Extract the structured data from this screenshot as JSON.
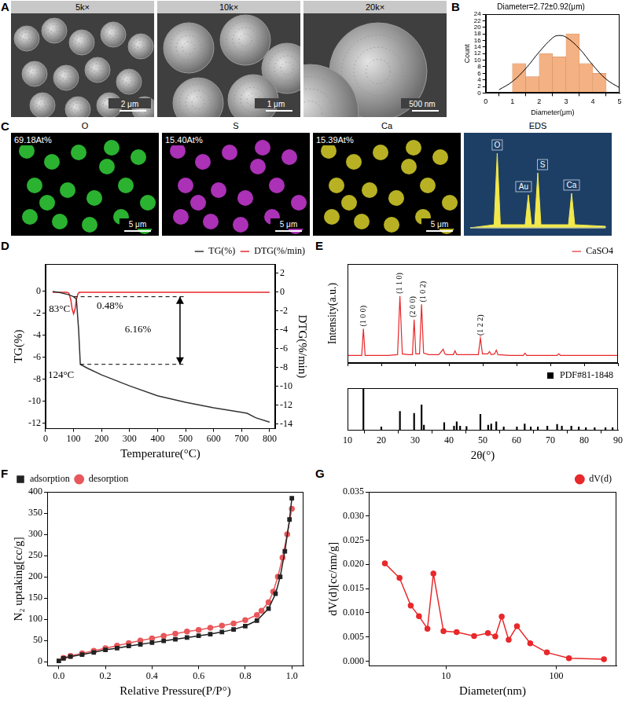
{
  "panels": {
    "A": {
      "panel": "A",
      "images": [
        {
          "label": "5k×",
          "scale_bar": "2 μm"
        },
        {
          "label": "10k×",
          "scale_bar": "1 μm"
        },
        {
          "label": "20k×",
          "scale_bar": "500 nm"
        }
      ]
    },
    "C": {
      "panel": "C",
      "maps": [
        {
          "element": "O",
          "content": "69.18At%",
          "color": "#33d13a",
          "scale_bar": "5 μm"
        },
        {
          "element": "S",
          "content": "15.40At%",
          "color": "#c93ad6",
          "scale_bar": "5 μm"
        },
        {
          "element": "Ca",
          "content": "15.39At%",
          "color": "#d8d02a",
          "scale_bar": "5 μm"
        }
      ],
      "spectrum": {
        "title": "EDS",
        "peaks": [
          "O",
          "Au",
          "S",
          "Ca"
        ],
        "color": "#f2e84a"
      }
    }
  },
  "chart_data": [
    {
      "panel": "B",
      "type": "histogram",
      "title": "Diameter=2.72±0.92(μm)",
      "x_label": "Diameter(μm)",
      "y_label": "Count",
      "bins": [
        1,
        1.5,
        2,
        2.5,
        3,
        3.5,
        4,
        4.5
      ],
      "values": [
        9,
        5,
        12,
        11,
        18,
        9,
        6
      ],
      "color": "#f4b183",
      "curve": {
        "x": [
          0.5,
          1,
          1.5,
          2,
          2.5,
          2.72,
          3,
          3.5,
          4,
          4.5,
          5
        ],
        "values": [
          1,
          3.5,
          7.5,
          12.5,
          16.8,
          17.5,
          17,
          13.5,
          8.5,
          4.2,
          1.6
        ],
        "color": "#000000"
      },
      "xlim": [
        0,
        5
      ],
      "xticks": [
        0,
        1,
        2,
        3,
        4,
        5
      ],
      "ylim": [
        0,
        24
      ],
      "yticks": [
        0,
        2,
        4,
        6,
        8,
        10,
        12,
        14,
        16,
        18,
        20,
        22,
        24
      ],
      "grid": false
    },
    {
      "panel": "D",
      "type": "line",
      "x_label": "Temperature(°C)",
      "y_label": "TG(%)",
      "y2_label": "DTG(%/min)",
      "series": [
        {
          "name": "TG(%)",
          "color": "#333333",
          "x": [
            25,
            50,
            83,
            100,
            110,
            118,
            124,
            150,
            200,
            300,
            400,
            500,
            600,
            700,
            720,
            750,
            800
          ],
          "values": [
            0,
            -0.1,
            -0.3,
            -0.48,
            -0.7,
            -3.5,
            -6.64,
            -7.0,
            -7.6,
            -8.6,
            -9.5,
            -10.1,
            -10.6,
            -11.0,
            -11.1,
            -11.5,
            -11.9
          ]
        },
        {
          "name": "DTG(%/min)",
          "color": "#e8282b",
          "axis": "y2",
          "x": [
            25,
            40,
            60,
            75,
            83,
            90,
            95,
            100,
            105,
            110,
            115,
            120,
            130,
            150,
            200,
            300,
            400,
            500,
            600,
            700,
            800
          ],
          "values": [
            0,
            0,
            0,
            0,
            -0.1,
            -0.8,
            -1.8,
            -2.3,
            -1.8,
            -0.8,
            -0.2,
            0,
            0,
            0,
            0,
            0,
            0,
            0,
            0,
            0,
            0
          ]
        }
      ],
      "xlim": [
        0,
        820
      ],
      "xticks": [
        0,
        100,
        200,
        300,
        400,
        500,
        600,
        700,
        800
      ],
      "ylim": [
        -12.5,
        2.5
      ],
      "yticks": [
        -12,
        -10,
        -8,
        -6,
        -4,
        -2,
        0
      ],
      "y2lim": [
        -14.5,
        3
      ],
      "y2ticks": [
        -14,
        -12,
        -10,
        -8,
        -6,
        -4,
        -2,
        0,
        2
      ],
      "legend": "top right",
      "grid": false,
      "annotations": [
        {
          "text": "83°C",
          "x": 50,
          "y": -1.6
        },
        {
          "text": "124°C",
          "x": 55,
          "y": -7.6
        },
        {
          "text": "0.48%",
          "x": 230,
          "y": -1.3
        },
        {
          "text": "6.16%",
          "x": 330,
          "y": -3.5
        }
      ],
      "reference_lines": [
        {
          "y": -0.48,
          "x": [
            100,
            500
          ],
          "line_style": "dashed"
        },
        {
          "y": -6.64,
          "x": [
            124,
            500
          ],
          "line_style": "dashed"
        }
      ],
      "arrows": [
        {
          "x": 480,
          "y": [
            -0.48,
            -6.64
          ]
        }
      ]
    },
    {
      "panel": "E",
      "type": "line",
      "y_label": "Intensity(a.u.)",
      "series": [
        {
          "name": "CaSO4",
          "color": "#e8282b",
          "x": [
            10,
            12,
            14.2,
            14.7,
            15.2,
            17,
            20,
            22,
            24.8,
            25.5,
            26.2,
            28,
            29.2,
            29.7,
            30.2,
            31.3,
            31.9,
            32.5,
            34,
            37,
            38.3,
            38.8,
            39.3,
            41.3,
            41.8,
            42.3,
            45,
            48.7,
            49.3,
            49.9,
            51.5,
            52,
            52.5,
            53.5,
            54,
            54.5,
            58,
            62,
            62.5,
            63,
            70,
            72,
            72.5,
            73,
            80,
            90
          ],
          "values": [
            10,
            10,
            10,
            45,
            10,
            10,
            10,
            10,
            11,
            88,
            12,
            11,
            11,
            57,
            12,
            12,
            77,
            13,
            11,
            11,
            18,
            12,
            11,
            11,
            16,
            11,
            11,
            11,
            33,
            12,
            12,
            15,
            11,
            12,
            17,
            11,
            10,
            10,
            13,
            10,
            10,
            10,
            12,
            10,
            10,
            10
          ]
        }
      ],
      "xlim": [
        10,
        90
      ],
      "xticks": [
        10,
        20,
        30,
        40,
        50,
        60,
        70,
        80,
        90
      ],
      "ylim": [
        0,
        130
      ],
      "tick_labels": false,
      "legend": "top right",
      "grid": false,
      "annotations": [
        {
          "text": "(1 0 0)",
          "x": 14.7,
          "y": 48
        },
        {
          "text": "(1 1 0)",
          "x": 25.5,
          "y": 91
        },
        {
          "text": "(2 0 0)",
          "x": 29.3,
          "y": 60
        },
        {
          "text": "(1 0 2)",
          "x": 32.3,
          "y": 80
        },
        {
          "text": "(1 2 2)",
          "x": 49.3,
          "y": 36
        }
      ]
    },
    {
      "type": "bar",
      "x_label": "2θ(°)",
      "series": [
        {
          "name": "PDF#81-1848",
          "color": "#000000",
          "x": [
            14.7,
            20.0,
            25.5,
            29.7,
            31.9,
            32.6,
            38.6,
            41.5,
            42.3,
            43.3,
            45.2,
            49.3,
            51.6,
            52.5,
            54.0,
            56.2,
            60.1,
            62.4,
            64.2,
            66.3,
            69.1,
            72.0,
            73.4,
            76.2,
            78.4,
            80.5,
            83.1,
            86.3,
            88.4
          ],
          "values": [
            100,
            8,
            45,
            40,
            60,
            12,
            18,
            10,
            20,
            10,
            9,
            38,
            12,
            15,
            20,
            8,
            8,
            15,
            8,
            8,
            10,
            14,
            10,
            10,
            8,
            6,
            6,
            6,
            6
          ]
        }
      ],
      "xlim": [
        10,
        90
      ],
      "xticks": [
        10,
        20,
        30,
        40,
        50,
        60,
        70,
        80,
        90
      ],
      "ylim": [
        0,
        100
      ],
      "tick_labels": "x",
      "legend": "top right",
      "grid": false
    },
    {
      "panel": "F",
      "type": "line",
      "x_label": "Relative Pressure(P/P°)",
      "y_label": "N₂ uptaking[cc/g]",
      "series": [
        {
          "name": "adsorption",
          "color": "#222222",
          "marker": "square",
          "x": [
            0,
            0.02,
            0.05,
            0.1,
            0.15,
            0.2,
            0.25,
            0.3,
            0.35,
            0.4,
            0.45,
            0.5,
            0.55,
            0.6,
            0.65,
            0.7,
            0.75,
            0.8,
            0.85,
            0.9,
            0.93,
            0.95,
            0.97,
            0.99,
            1.0
          ],
          "values": [
            2,
            8,
            12,
            17,
            22,
            28,
            32,
            37,
            41,
            45,
            49,
            53,
            57,
            61,
            65,
            70,
            76,
            84,
            97,
            125,
            160,
            200,
            260,
            335,
            385
          ]
        },
        {
          "name": "desorption",
          "color": "#e8575a",
          "marker": "circle",
          "x": [
            1.0,
            0.98,
            0.96,
            0.94,
            0.92,
            0.9,
            0.87,
            0.85,
            0.8,
            0.75,
            0.7,
            0.65,
            0.6,
            0.55,
            0.5,
            0.45,
            0.4,
            0.35,
            0.3,
            0.25,
            0.2,
            0.15,
            0.1,
            0.05,
            0.02
          ],
          "values": [
            360,
            300,
            245,
            200,
            165,
            140,
            120,
            110,
            98,
            90,
            85,
            80,
            75,
            71,
            66,
            61,
            55,
            50,
            44,
            38,
            32,
            26,
            20,
            14,
            9
          ]
        }
      ],
      "xlim": [
        -0.05,
        1.05
      ],
      "xticks": [
        {
          "value": 0,
          "label": "0.0"
        },
        0.2,
        0.4,
        0.6,
        0.8,
        {
          "value": 1,
          "label": "1.0"
        }
      ],
      "ylim": [
        -10,
        400
      ],
      "yticks": [
        0,
        50,
        100,
        150,
        200,
        250,
        300,
        350,
        400
      ],
      "legend": "top left",
      "grid": false
    },
    {
      "panel": "G",
      "type": "line",
      "log": "x",
      "x_label": "Diameter(nm)",
      "y_label": "dV(d)[cc/nm/g]",
      "series": [
        {
          "name": "dV(d)",
          "color": "#e8282b",
          "marker": "circle",
          "x": [
            2.8,
            3.8,
            4.8,
            5.7,
            6.8,
            7.7,
            9.5,
            12.5,
            18,
            24,
            28,
            32,
            37,
            44,
            58,
            82,
            130,
            270
          ],
          "values": [
            0.0202,
            0.0172,
            0.0115,
            0.0093,
            0.0067,
            0.0181,
            0.0062,
            0.006,
            0.0052,
            0.0058,
            0.0051,
            0.0092,
            0.0044,
            0.0072,
            0.0037,
            0.0018,
            0.0006,
            0.0004
          ]
        }
      ],
      "xlim": [
        2,
        350
      ],
      "xticks": [
        10,
        100
      ],
      "ylim": [
        -0.001,
        0.035
      ],
      "yticks": [
        {
          "value": 0,
          "label": "0.000"
        },
        {
          "value": 0.005,
          "label": "0.005"
        },
        {
          "value": 0.01,
          "label": "0.010"
        },
        {
          "value": 0.015,
          "label": "0.015"
        },
        {
          "value": 0.02,
          "label": "0.020"
        },
        {
          "value": 0.025,
          "label": "0.025"
        },
        {
          "value": 0.03,
          "label": "0.030"
        },
        {
          "value": 0.035,
          "label": "0.035"
        }
      ],
      "legend": "top right",
      "grid": false
    }
  ]
}
